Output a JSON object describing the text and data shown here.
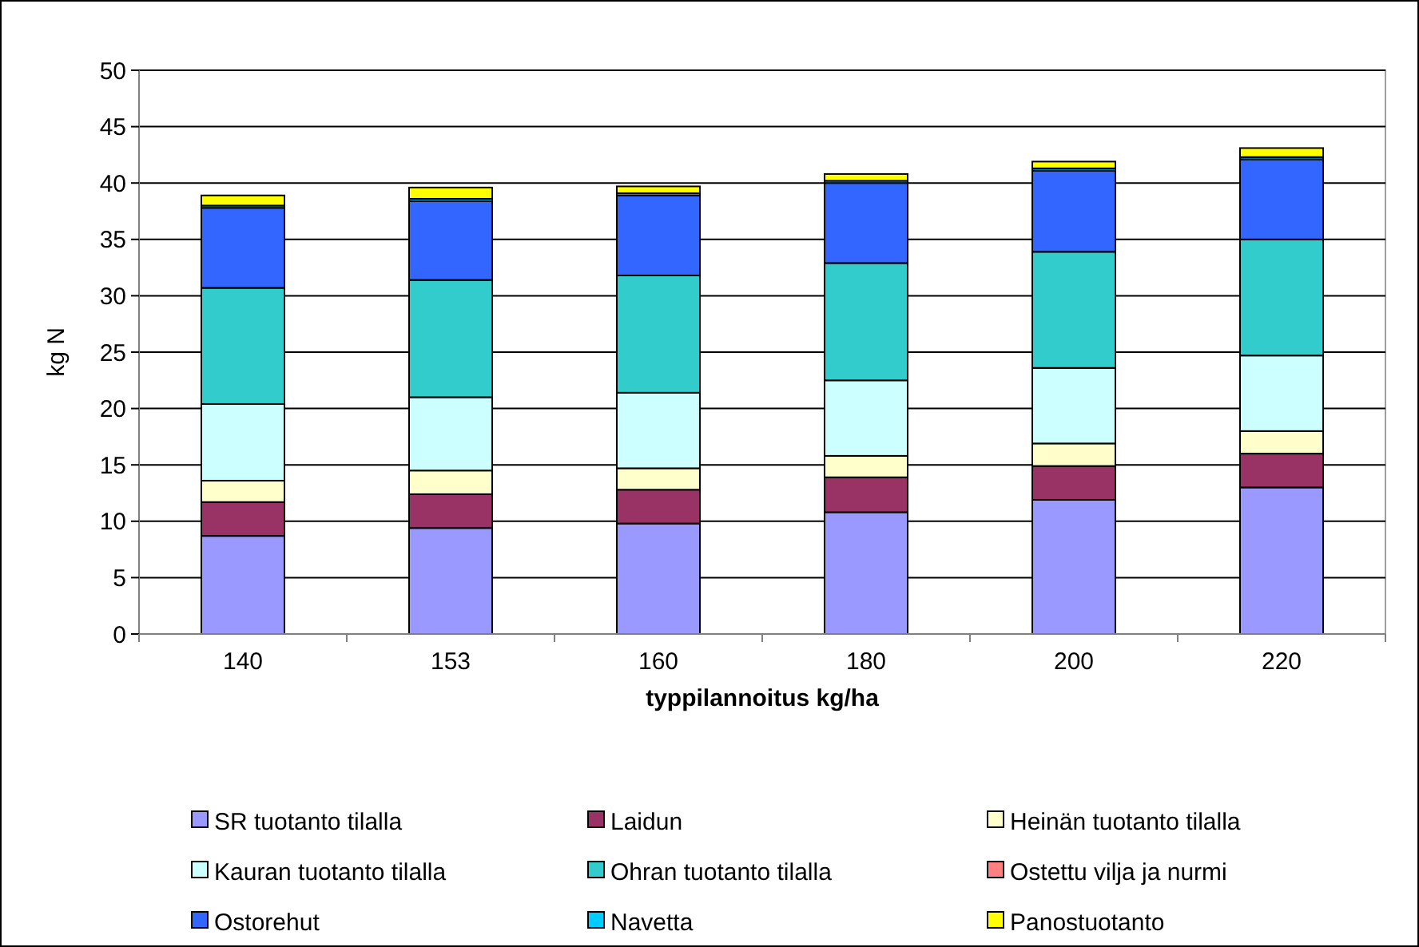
{
  "chart_data": {
    "type": "bar",
    "stacked": true,
    "xlabel": "typpilannoitus kg/ha",
    "ylabel": "kg N",
    "categories": [
      "140",
      "153",
      "160",
      "180",
      "200",
      "220"
    ],
    "series": [
      {
        "name": "SR tuotanto tilalla",
        "color": "#9999ff",
        "values": [
          8.7,
          9.4,
          9.8,
          10.8,
          11.9,
          13.0
        ]
      },
      {
        "name": "Laidun",
        "color": "#993366",
        "values": [
          3.0,
          3.0,
          3.0,
          3.1,
          3.0,
          3.0
        ]
      },
      {
        "name": "Heinän tuotanto tilalla",
        "color": "#ffffcc",
        "values": [
          1.9,
          2.1,
          1.9,
          1.9,
          2.0,
          2.0
        ]
      },
      {
        "name": "Kauran tuotanto tilalla",
        "color": "#ccffff",
        "values": [
          6.8,
          6.5,
          6.7,
          6.7,
          6.7,
          6.7
        ]
      },
      {
        "name": "Ohran tuotanto tilalla",
        "color": "#33cccc",
        "values": [
          10.3,
          10.4,
          10.4,
          10.4,
          10.3,
          10.3
        ]
      },
      {
        "name": "Ostettu vilja ja nurmi",
        "color": "#ff8080",
        "values": [
          0,
          0,
          0,
          0,
          0,
          0
        ]
      },
      {
        "name": "Ostorehut",
        "color": "#3366ff",
        "values": [
          7.1,
          7.0,
          7.1,
          7.1,
          7.2,
          7.1
        ]
      },
      {
        "name": "Navetta",
        "color": "#00ccff",
        "values": [
          0.2,
          0.2,
          0.2,
          0.2,
          0.2,
          0.2
        ]
      },
      {
        "name": "Panostuotanto",
        "color": "#ffff00",
        "values": [
          0.9,
          1.0,
          0.6,
          0.6,
          0.6,
          0.8
        ]
      }
    ],
    "ylim": [
      0,
      50
    ],
    "yticks": [
      0,
      5,
      10,
      15,
      20,
      25,
      30,
      35,
      40,
      45,
      50
    ],
    "grid": "y",
    "legend": "bottom"
  }
}
